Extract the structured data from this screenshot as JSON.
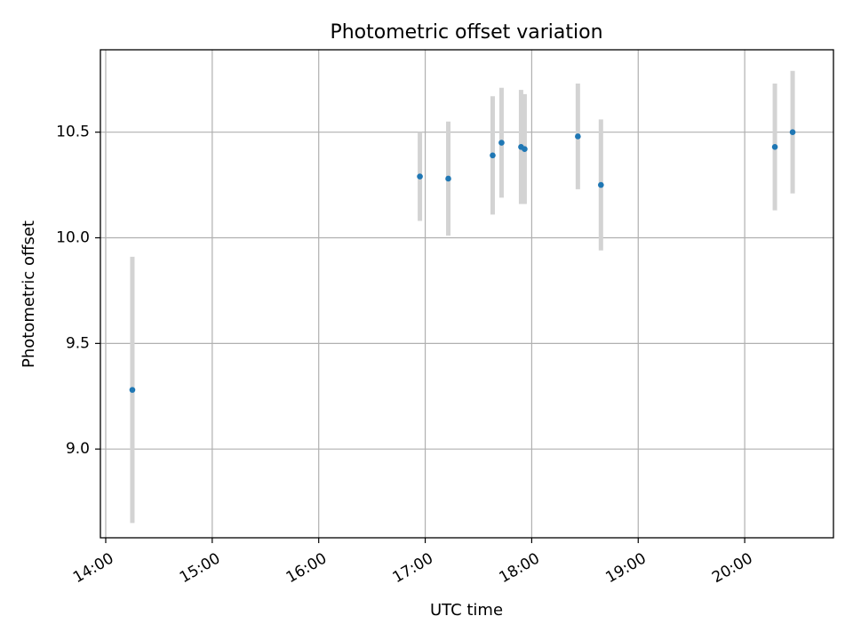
{
  "chart_data": {
    "type": "scatter",
    "title": "Photometric offset variation",
    "xlabel": "UTC time",
    "ylabel": "Photometric offset",
    "x_ticks": [
      "14:00",
      "15:00",
      "16:00",
      "17:00",
      "18:00",
      "19:00",
      "20:00"
    ],
    "y_ticks": [
      "9.0",
      "9.5",
      "10.0",
      "10.5"
    ],
    "xlim": [
      "13:57",
      "20:50"
    ],
    "ylim": [
      8.58,
      10.89
    ],
    "grid": true,
    "series": [
      {
        "marker_color": "#1f77b4",
        "errorbar_color": "#d3d3d3",
        "points": [
          {
            "time": "14:15",
            "y": 9.28,
            "err": 0.63
          },
          {
            "time": "16:57",
            "y": 10.29,
            "err": 0.21
          },
          {
            "time": "17:13",
            "y": 10.28,
            "err": 0.27
          },
          {
            "time": "17:38",
            "y": 10.39,
            "err": 0.28
          },
          {
            "time": "17:43",
            "y": 10.45,
            "err": 0.26
          },
          {
            "time": "17:54",
            "y": 10.43,
            "err": 0.27
          },
          {
            "time": "17:56",
            "y": 10.42,
            "err": 0.26
          },
          {
            "time": "18:26",
            "y": 10.48,
            "err": 0.25
          },
          {
            "time": "18:39",
            "y": 10.25,
            "err": 0.31
          },
          {
            "time": "20:17",
            "y": 10.43,
            "err": 0.3
          },
          {
            "time": "20:27",
            "y": 10.5,
            "err": 0.29
          }
        ]
      }
    ]
  }
}
